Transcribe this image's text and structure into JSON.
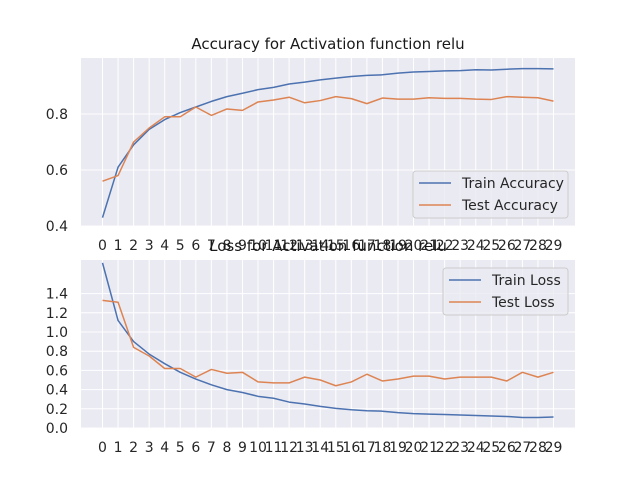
{
  "chart_data": [
    {
      "type": "line",
      "title": "Accuracy for Activation function relu",
      "xlabel": "",
      "ylabel": "",
      "x": [
        0,
        1,
        2,
        3,
        4,
        5,
        6,
        7,
        8,
        9,
        10,
        11,
        12,
        13,
        14,
        15,
        16,
        17,
        18,
        19,
        20,
        21,
        22,
        23,
        24,
        25,
        26,
        27,
        28,
        29
      ],
      "xticks": [
        "0",
        "1",
        "2",
        "3",
        "4",
        "5",
        "6",
        "7",
        "8",
        "9",
        "10",
        "11",
        "12",
        "13",
        "14",
        "15",
        "16",
        "17",
        "18",
        "19",
        "20",
        "21",
        "22",
        "23",
        "24",
        "25",
        "26",
        "27",
        "28",
        "29"
      ],
      "ylim": [
        0.4,
        1.0
      ],
      "yticks": [
        0.4,
        0.6,
        0.8
      ],
      "ytick_labels": [
        "0.4",
        "0.6",
        "0.8"
      ],
      "grid": true,
      "legend": "lower-right",
      "series": [
        {
          "name": "Train Accuracy",
          "color": "#4c72b0",
          "values": [
            0.43,
            0.61,
            0.69,
            0.745,
            0.78,
            0.805,
            0.825,
            0.845,
            0.862,
            0.874,
            0.887,
            0.895,
            0.907,
            0.914,
            0.922,
            0.928,
            0.934,
            0.938,
            0.94,
            0.946,
            0.95,
            0.952,
            0.954,
            0.955,
            0.958,
            0.957,
            0.96,
            0.962,
            0.962,
            0.961
          ]
        },
        {
          "name": "Test Accuracy",
          "color": "#dd8452",
          "values": [
            0.56,
            0.58,
            0.7,
            0.75,
            0.79,
            0.79,
            0.825,
            0.795,
            0.818,
            0.813,
            0.843,
            0.85,
            0.86,
            0.84,
            0.848,
            0.862,
            0.855,
            0.837,
            0.857,
            0.853,
            0.853,
            0.858,
            0.856,
            0.856,
            0.853,
            0.852,
            0.862,
            0.86,
            0.858,
            0.846
          ]
        }
      ]
    },
    {
      "type": "line",
      "title": "Loss for Activation function relu",
      "xlabel": "",
      "ylabel": "",
      "x": [
        0,
        1,
        2,
        3,
        4,
        5,
        6,
        7,
        8,
        9,
        10,
        11,
        12,
        13,
        14,
        15,
        16,
        17,
        18,
        19,
        20,
        21,
        22,
        23,
        24,
        25,
        26,
        27,
        28,
        29
      ],
      "xticks": [
        "0",
        "1",
        "2",
        "3",
        "4",
        "5",
        "6",
        "7",
        "8",
        "9",
        "10",
        "11",
        "12",
        "13",
        "14",
        "15",
        "16",
        "17",
        "18",
        "19",
        "20",
        "21",
        "22",
        "23",
        "24",
        "25",
        "26",
        "27",
        "28",
        "29"
      ],
      "ylim": [
        0.0,
        1.75
      ],
      "yticks": [
        0.0,
        0.2,
        0.4,
        0.6,
        0.8,
        1.0,
        1.2,
        1.4
      ],
      "ytick_labels": [
        "0.0",
        "0.2",
        "0.4",
        "0.6",
        "0.8",
        "1.0",
        "1.2",
        "1.4"
      ],
      "grid": true,
      "legend": "upper-right",
      "series": [
        {
          "name": "Train Loss",
          "color": "#4c72b0",
          "values": [
            1.72,
            1.12,
            0.9,
            0.77,
            0.67,
            0.58,
            0.51,
            0.45,
            0.4,
            0.37,
            0.33,
            0.31,
            0.27,
            0.25,
            0.225,
            0.205,
            0.19,
            0.18,
            0.175,
            0.16,
            0.15,
            0.145,
            0.14,
            0.135,
            0.13,
            0.125,
            0.12,
            0.11,
            0.11,
            0.115
          ]
        },
        {
          "name": "Test Loss",
          "color": "#dd8452",
          "values": [
            1.33,
            1.31,
            0.84,
            0.75,
            0.62,
            0.62,
            0.53,
            0.61,
            0.57,
            0.58,
            0.48,
            0.47,
            0.47,
            0.53,
            0.5,
            0.44,
            0.48,
            0.56,
            0.49,
            0.51,
            0.54,
            0.54,
            0.51,
            0.53,
            0.53,
            0.53,
            0.49,
            0.58,
            0.53,
            0.58
          ]
        }
      ]
    }
  ]
}
